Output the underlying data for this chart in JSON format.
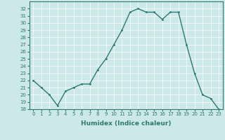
{
  "x": [
    0,
    1,
    2,
    3,
    4,
    5,
    6,
    7,
    8,
    9,
    10,
    11,
    12,
    13,
    14,
    15,
    16,
    17,
    18,
    19,
    20,
    21,
    22,
    23
  ],
  "y": [
    22,
    21,
    20,
    18.5,
    20.5,
    21,
    21.5,
    21.5,
    23.5,
    25,
    27,
    29,
    31.5,
    32,
    31.5,
    31.5,
    30.5,
    31.5,
    31.5,
    27,
    23,
    20,
    19.5,
    18
  ],
  "line_color": "#2d7a6e",
  "marker_color": "#2d7a6e",
  "bg_color": "#cce8e8",
  "grid_color": "#ffffff",
  "xlabel": "Humidex (Indice chaleur)",
  "ylim": [
    18,
    33
  ],
  "xlim": [
    -0.5,
    23.5
  ],
  "yticks": [
    18,
    19,
    20,
    21,
    22,
    23,
    24,
    25,
    26,
    27,
    28,
    29,
    30,
    31,
    32
  ],
  "xticks": [
    0,
    1,
    2,
    3,
    4,
    5,
    6,
    7,
    8,
    9,
    10,
    11,
    12,
    13,
    14,
    15,
    16,
    17,
    18,
    19,
    20,
    21,
    22,
    23
  ],
  "tick_fontsize": 5.0,
  "label_fontsize": 6.5,
  "line_width": 1.0,
  "marker_size": 2.0
}
